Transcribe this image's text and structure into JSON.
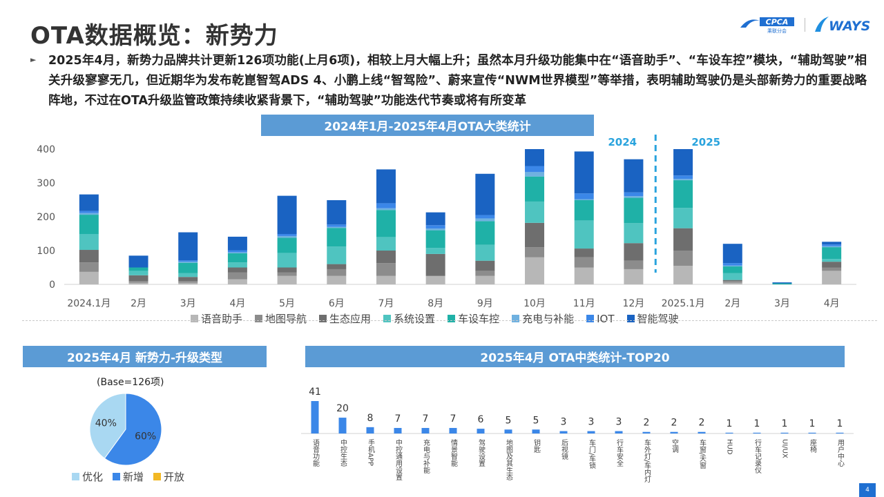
{
  "page": {
    "title": "OTA数据概览：新势力",
    "summary": "2025年4月，新势力品牌共计更新126项功能(上月6项)，相较上月大幅上升；虽然本月升级功能集中在“语音助手”、“车设车控”模块，“辅助驾驶”相关升级寥寥无几，但近期华为发布乾崑智驾ADS 4、小鹏上线“智驾险”、蔚来宣传“NWM世界模型”等举措，表明辅助驾驶仍是头部新势力的重要战略阵地，不过在OTA升级监管政策持续收紧背景下，“辅助驾驶”功能迭代节奏或将有所变革",
    "page_number": "4",
    "logos": {
      "cpca": "CPCA",
      "cpca_sub": "乘联分会",
      "ways": "WAYS"
    }
  },
  "chart_data": [
    {
      "type": "bar",
      "stacked": true,
      "title": "2024年1月-2025年4月OTA大类统计",
      "categories": [
        "2024.1月",
        "2月",
        "3月",
        "4月",
        "5月",
        "6月",
        "7月",
        "8月",
        "9月",
        "10月",
        "11月",
        "12月",
        "2025.1月",
        "2月",
        "3月",
        "4月"
      ],
      "ylim": [
        0,
        400
      ],
      "yticks": [
        "0",
        "100",
        "200",
        "300",
        "400"
      ],
      "grid": false,
      "legend": "bottom",
      "annotations": [
        "2024",
        "2025"
      ],
      "series": [
        {
          "name": "语音助手",
          "color": "#b7b7b7",
          "values": [
            37,
            5,
            5,
            15,
            25,
            25,
            25,
            25,
            25,
            80,
            50,
            45,
            55,
            5,
            0,
            40
          ]
        },
        {
          "name": "地图导航",
          "color": "#8c8c8c",
          "values": [
            28,
            5,
            5,
            20,
            10,
            20,
            38,
            0,
            15,
            30,
            30,
            25,
            45,
            5,
            0,
            10
          ]
        },
        {
          "name": "生态应用",
          "color": "#6e6e6e",
          "values": [
            37,
            17,
            12,
            15,
            15,
            15,
            37,
            65,
            30,
            72,
            26,
            52,
            66,
            3,
            0,
            17
          ]
        },
        {
          "name": "系统设置",
          "color": "#4fc4c0",
          "values": [
            47,
            13,
            11,
            15,
            43,
            52,
            40,
            18,
            47,
            63,
            83,
            59,
            60,
            20,
            0,
            8
          ]
        },
        {
          "name": "车设车控",
          "color": "#1fb1a7",
          "values": [
            57,
            10,
            31,
            27,
            45,
            55,
            80,
            52,
            70,
            74,
            60,
            75,
            82,
            20,
            3,
            35
          ]
        },
        {
          "name": "充电与补能",
          "color": "#6fb1e0",
          "values": [
            5,
            0,
            3,
            3,
            5,
            3,
            5,
            5,
            8,
            13,
            3,
            5,
            4,
            3,
            0,
            3
          ]
        },
        {
          "name": "IOT",
          "color": "#3b87e8",
          "values": [
            6,
            0,
            4,
            6,
            6,
            7,
            15,
            10,
            10,
            18,
            17,
            11,
            10,
            7,
            0,
            5
          ]
        },
        {
          "name": "智能驾驶",
          "color": "#1a63c2",
          "values": [
            49,
            35,
            83,
            40,
            113,
            72,
            100,
            38,
            122,
            50,
            124,
            98,
            80,
            57,
            3,
            8
          ]
        }
      ]
    },
    {
      "type": "pie",
      "title": "2025年4月 新势力-升级类型",
      "base": "(Base=126项)",
      "legend": "bottom",
      "series": [
        {
          "name": "优化",
          "value": 40,
          "label": "40%",
          "color": "#a9d8f2"
        },
        {
          "name": "新增",
          "value": 60,
          "label": "60%",
          "color": "#3b87e8"
        },
        {
          "name": "开放",
          "value": 0,
          "label": "",
          "color": "#f2b824"
        }
      ]
    },
    {
      "type": "bar",
      "title": "2025年4月 OTA中类统计-TOP20",
      "color": "#3b87e8",
      "grid": false,
      "categories": [
        "语音功能",
        "中控生态",
        "手机APP",
        "中控通用设置",
        "充电与补能",
        "情景智能",
        "驾驶设置",
        "地图及其生态",
        "钥匙",
        "后视镜",
        "车门/车锁",
        "行车安全",
        "车外灯/车内灯",
        "空调",
        "车窗/天窗",
        "HUD",
        "行车记录仪",
        "UI/UX",
        "座椅",
        "用户中心"
      ],
      "values": [
        41,
        20,
        8,
        7,
        7,
        7,
        6,
        5,
        5,
        3,
        3,
        3,
        2,
        2,
        2,
        1,
        1,
        1,
        1,
        1
      ]
    }
  ]
}
